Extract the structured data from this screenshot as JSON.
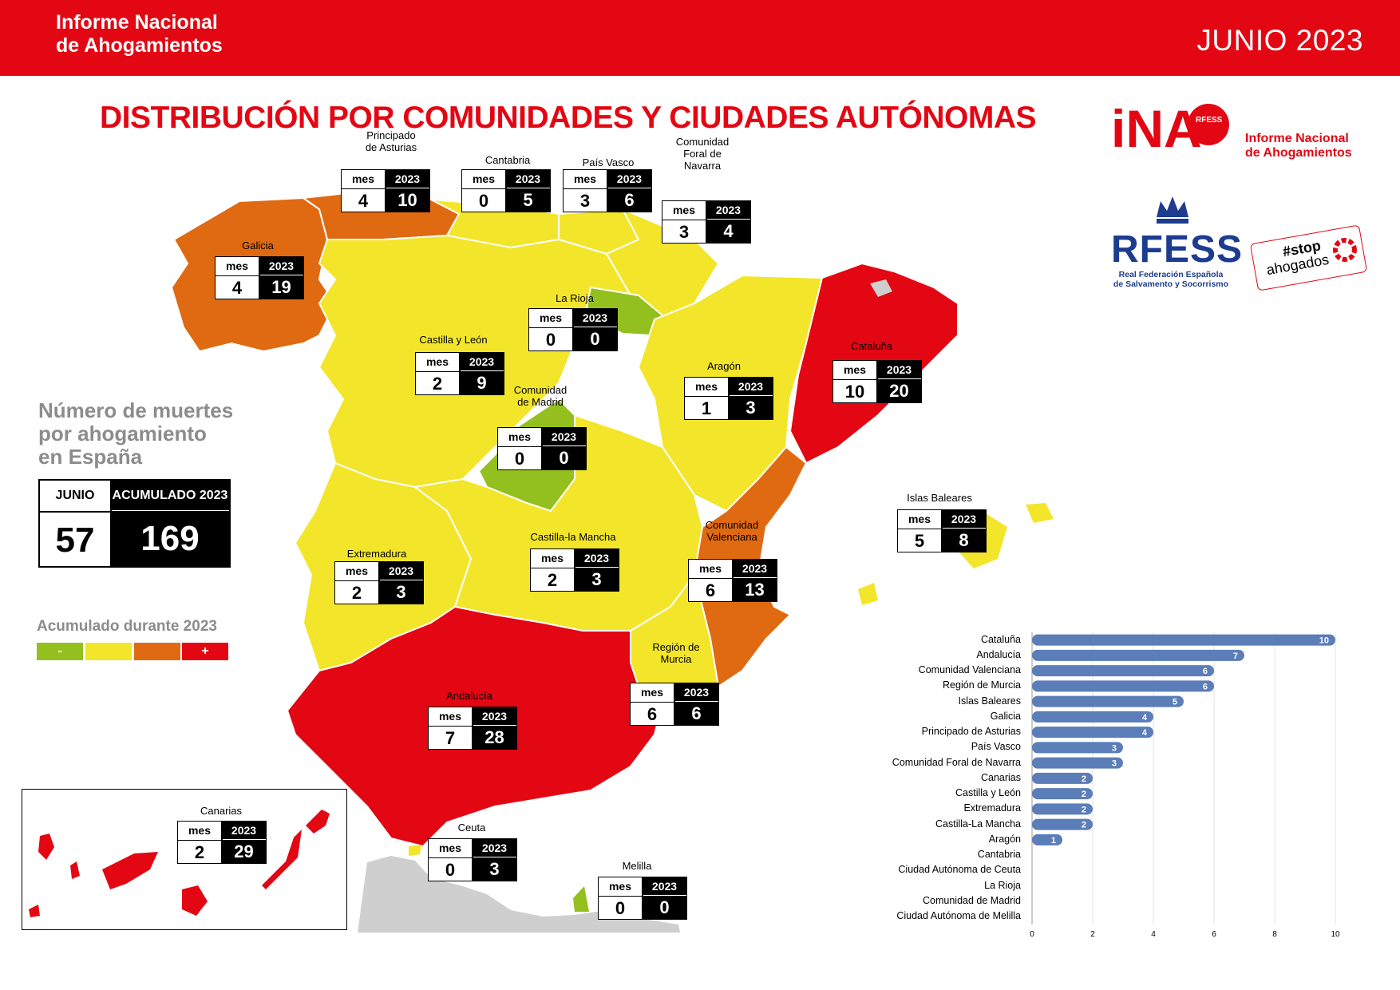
{
  "header": {
    "brand": [
      "Informe Nacional",
      "de Ahogamientos"
    ],
    "period": "JUNIO 2023"
  },
  "title": "DISTRIBUCIÓN POR COMUNIDADES Y CIUDADES AUTÓNOMAS",
  "logos": {
    "ina": "iNA",
    "ina_small": "RFESS",
    "ina_subtitle": [
      "Informe Nacional",
      "de Ahogamientos"
    ],
    "rfess": "RFESS",
    "rfess_subtitle": [
      "Real Federación Española",
      "de Salvamento y Socorrismo"
    ],
    "stop": [
      "#stop",
      "ahogados"
    ]
  },
  "box_headers": {
    "month": "mes",
    "year": "2023"
  },
  "regions": [
    {
      "id": "asturias",
      "name_lines": [
        "Principado",
        "de Asturias"
      ],
      "month": 4,
      "year": 10,
      "color": "#e06a12"
    },
    {
      "id": "cantabria",
      "name_lines": [
        "Cantabria"
      ],
      "month": 0,
      "year": 5,
      "color": "#f3e52a"
    },
    {
      "id": "pais-vasco",
      "name_lines": [
        "País Vasco"
      ],
      "month": 3,
      "year": 6,
      "color": "#f3e52a"
    },
    {
      "id": "navarra",
      "name_lines": [
        "Comunidad",
        "Foral de",
        "Navarra"
      ],
      "month": 3,
      "year": 4,
      "color": "#f3e52a"
    },
    {
      "id": "galicia",
      "name_lines": [
        "Galicia"
      ],
      "month": 4,
      "year": 19,
      "color": "#e06a12"
    },
    {
      "id": "la-rioja",
      "name_lines": [
        "La Rioja"
      ],
      "month": 0,
      "year": 0,
      "color": "#93c01f"
    },
    {
      "id": "castilla-leon",
      "name_lines": [
        "Castilla y León"
      ],
      "month": 2,
      "year": 9,
      "color": "#f3e52a"
    },
    {
      "id": "aragon",
      "name_lines": [
        "Aragón"
      ],
      "month": 1,
      "year": 3,
      "color": "#f3e52a"
    },
    {
      "id": "cataluna",
      "name_lines": [
        "Cataluña"
      ],
      "month": 10,
      "year": 20,
      "color": "#e30613"
    },
    {
      "id": "madrid",
      "name_lines": [
        "Comunidad",
        "de Madrid"
      ],
      "month": 0,
      "year": 0,
      "color": "#93c01f"
    },
    {
      "id": "baleares",
      "name_lines": [
        "Islas Baleares"
      ],
      "month": 5,
      "year": 8,
      "color": "#f3e52a"
    },
    {
      "id": "extremadura",
      "name_lines": [
        "Extremadura"
      ],
      "month": 2,
      "year": 3,
      "color": "#f3e52a"
    },
    {
      "id": "castilla-mancha",
      "name_lines": [
        "Castilla-la Mancha"
      ],
      "month": 2,
      "year": 3,
      "color": "#f3e52a"
    },
    {
      "id": "valenciana",
      "name_lines": [
        "Comunidad",
        "Valenciana"
      ],
      "month": 6,
      "year": 13,
      "color": "#e06a12"
    },
    {
      "id": "murcia",
      "name_lines": [
        "Región de",
        "Murcia"
      ],
      "month": 6,
      "year": 6,
      "color": "#f3e52a"
    },
    {
      "id": "andalucia",
      "name_lines": [
        "Andalucía"
      ],
      "month": 7,
      "year": 28,
      "color": "#e30613"
    },
    {
      "id": "canarias",
      "name_lines": [
        "Canarias"
      ],
      "month": 2,
      "year": 29,
      "color": "#e30613"
    },
    {
      "id": "ceuta",
      "name_lines": [
        "Ceuta"
      ],
      "month": 0,
      "year": 3,
      "color": "#f3e52a"
    },
    {
      "id": "melilla",
      "name_lines": [
        "Melilla"
      ],
      "month": 0,
      "year": 0,
      "color": "#93c01f"
    }
  ],
  "summary": {
    "heading": [
      "Número de muertes",
      "por ahogamiento",
      "en España"
    ],
    "month_label": "JUNIO",
    "month_value": "57",
    "year_label": "ACUMULADO 2023",
    "year_value": "169"
  },
  "legend": {
    "title": "Acumulado durante 2023",
    "items": [
      {
        "label": "-",
        "color": "#93c01f"
      },
      {
        "label": "",
        "color": "#f3e52a"
      },
      {
        "label": "",
        "color": "#e06a12"
      },
      {
        "label": "+",
        "color": "#e30613"
      }
    ]
  },
  "chart_data": {
    "type": "bar",
    "orientation": "horizontal",
    "categories": [
      "Cataluña",
      "Andalucía",
      "Comunidad Valenciana",
      "Región de Murcia",
      "Islas Baleares",
      "Galicia",
      "Principado de Asturias",
      "País Vasco",
      "Comunidad Foral de Navarra",
      "Canarias",
      "Castilla y León",
      "Extremadura",
      "Castilla-La Mancha",
      "Aragón",
      "Cantabria",
      "Ciudad Autónoma de Ceuta",
      "La Rioja",
      "Comunidad de Madrid",
      "Ciudad Autónoma de Melilla"
    ],
    "values": [
      10,
      7,
      6,
      6,
      5,
      4,
      4,
      3,
      3,
      2,
      2,
      2,
      2,
      1,
      0,
      0,
      0,
      0,
      0
    ],
    "xlim": [
      0,
      10
    ],
    "xticks": [
      0,
      2,
      4,
      6,
      8,
      10
    ],
    "bar_color": "#5b7db8",
    "grid": true,
    "data_labels": true
  }
}
